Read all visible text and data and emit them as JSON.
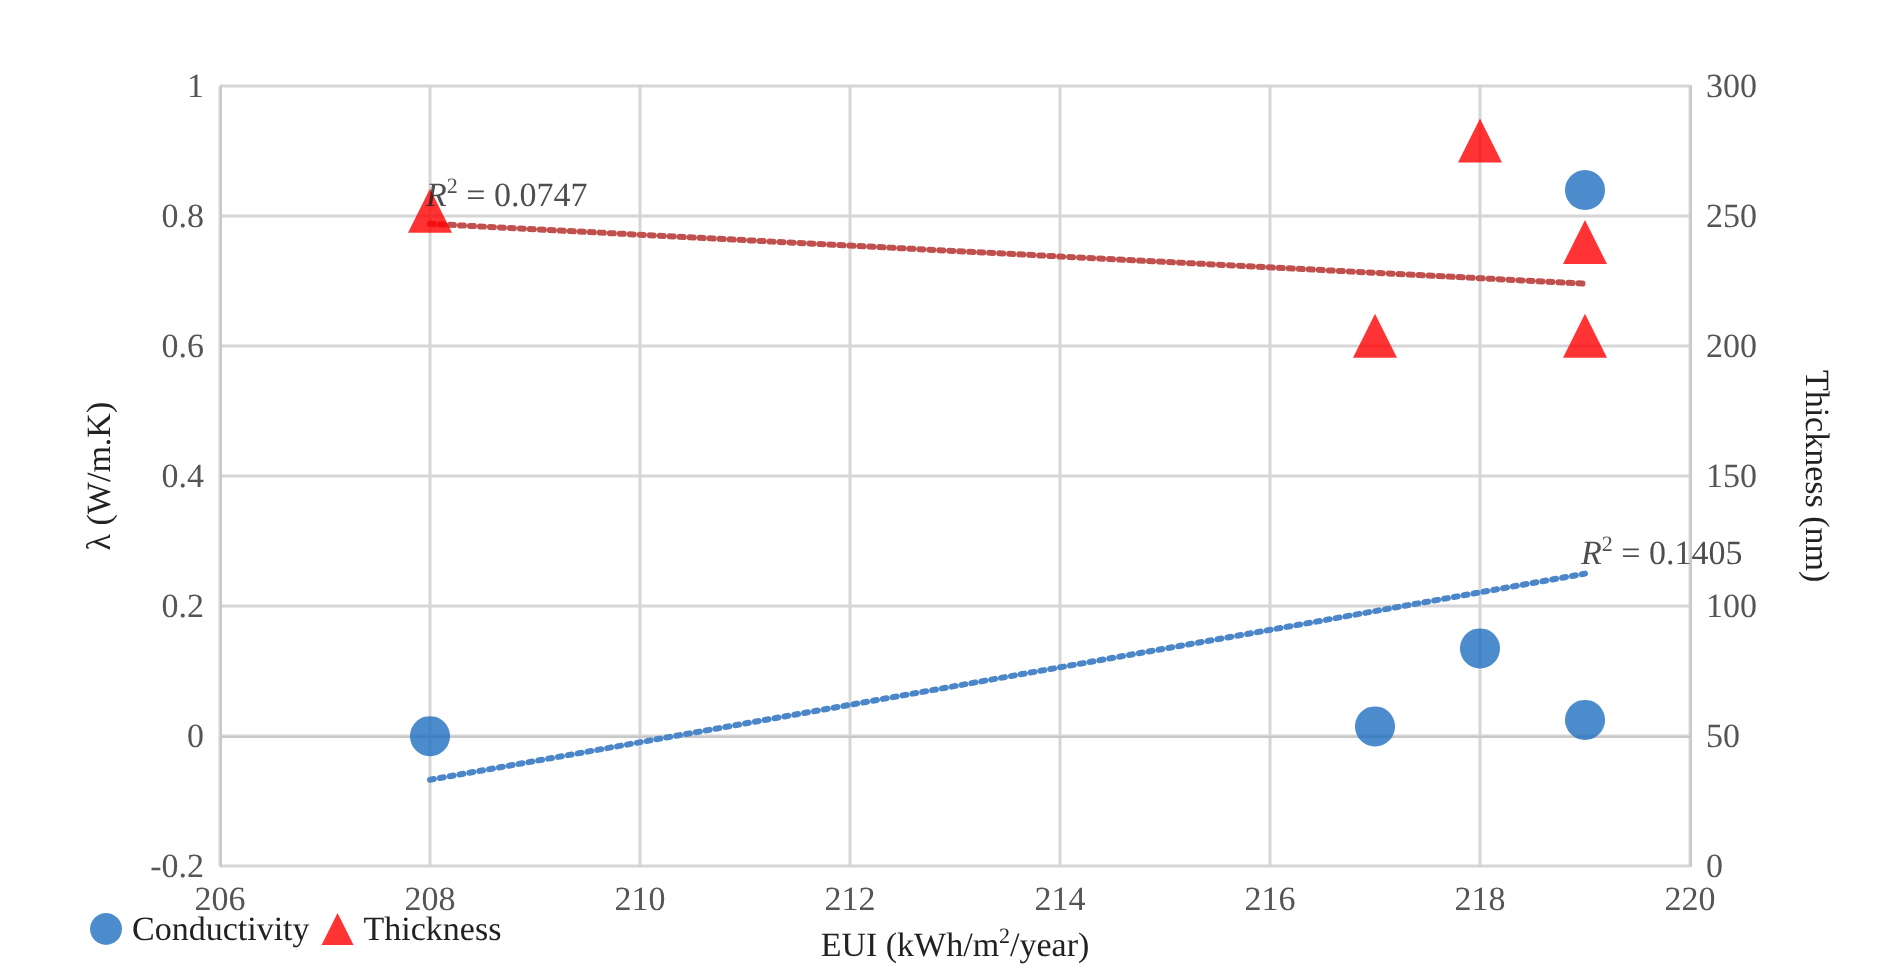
{
  "chart_data": {
    "type": "scatter",
    "xlabel": "EUI (kWh/m$^{2}$/year)",
    "ylabel": "λ (W/m.K)",
    "y2label": "Thickness (nm)",
    "xlim": [
      206,
      220
    ],
    "xticks": [
      206,
      208,
      210,
      212,
      214,
      216,
      218,
      220
    ],
    "ylim": [
      -0.2,
      1
    ],
    "yticks": [
      -0.2,
      0,
      0.2,
      0.4,
      0.6,
      0.8,
      1
    ],
    "y2lim": [
      0,
      300
    ],
    "y2ticks": [
      0,
      50,
      100,
      150,
      200,
      250,
      300
    ],
    "grid": true,
    "legend": "bottom left",
    "series": [
      {
        "name": "Conductivity",
        "color": "#1f6fc0",
        "marker": "circle",
        "x": [
          208,
          217,
          218,
          219,
          219
        ],
        "values": [
          0,
          0.015,
          0.135,
          0.84,
          0.025
        ]
      },
      {
        "name": "Thickness",
        "color": "#ff0000",
        "marker": "triangle",
        "axis": "y2",
        "x": [
          208,
          217,
          218,
          219,
          219
        ],
        "values": [
          252,
          204,
          279,
          240,
          204
        ]
      },
      {
        "type": "line",
        "color": "#4a86c8",
        "line_style": "dotted",
        "marker": "none",
        "x": [
          208,
          219
        ],
        "values": [
          -0.067,
          0.25
        ]
      },
      {
        "type": "line",
        "color": "#c0504d",
        "line_style": "dotted",
        "marker": "none",
        "axis": "y2",
        "x": [
          208,
          219
        ],
        "values": [
          247,
          224
        ]
      }
    ],
    "annotations": [
      {
        "text": "R$^{2}$ = 0.0747",
        "x": 208,
        "y": 0.8
      },
      {
        "text": "R$^{2}$ = 0.1405",
        "x": 219,
        "y": 0.25
      }
    ]
  }
}
